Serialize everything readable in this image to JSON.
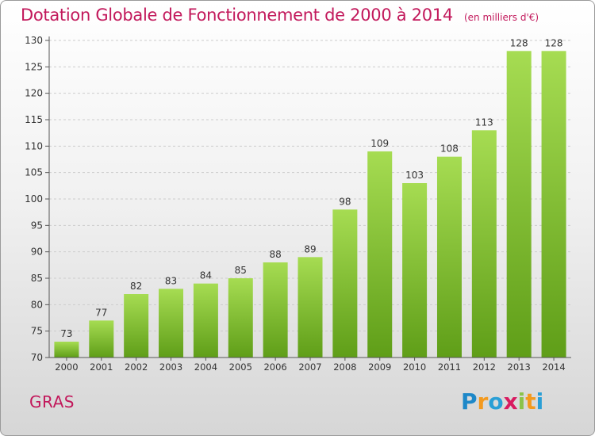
{
  "title": {
    "main": "Dotation Globale de Fonctionnement de 2000 à 2014",
    "unit": "(en milliers d'€)"
  },
  "commune": "GRAS",
  "logo": {
    "text": "Proxiti",
    "letters": [
      {
        "char": "P",
        "color": "#1e88c8"
      },
      {
        "char": "r",
        "color": "#f39a1e"
      },
      {
        "char": "o",
        "color": "#2a9fd6"
      },
      {
        "char": "x",
        "color": "#d81b60"
      },
      {
        "char": "i",
        "color": "#8bc34a"
      },
      {
        "char": "t",
        "color": "#f39a1e"
      },
      {
        "char": "i",
        "color": "#2a9fd6"
      }
    ]
  },
  "colors": {
    "title": "#c2185b",
    "bar_top": "#a6dc52",
    "bar_bottom": "#5f9e18",
    "axis": "#555555",
    "grid": "#cccccc"
  },
  "chart_data": {
    "type": "bar",
    "categories": [
      "2000",
      "2001",
      "2002",
      "2003",
      "2004",
      "2005",
      "2006",
      "2007",
      "2008",
      "2009",
      "2010",
      "2011",
      "2012",
      "2013",
      "2014"
    ],
    "values": [
      73,
      77,
      82,
      83,
      84,
      85,
      88,
      89,
      98,
      109,
      103,
      108,
      113,
      128,
      128
    ],
    "ylim": [
      70,
      130
    ],
    "yticks": [
      70,
      75,
      80,
      85,
      90,
      95,
      100,
      105,
      110,
      115,
      120,
      125,
      130
    ],
    "grid": true,
    "data_labels": true
  }
}
